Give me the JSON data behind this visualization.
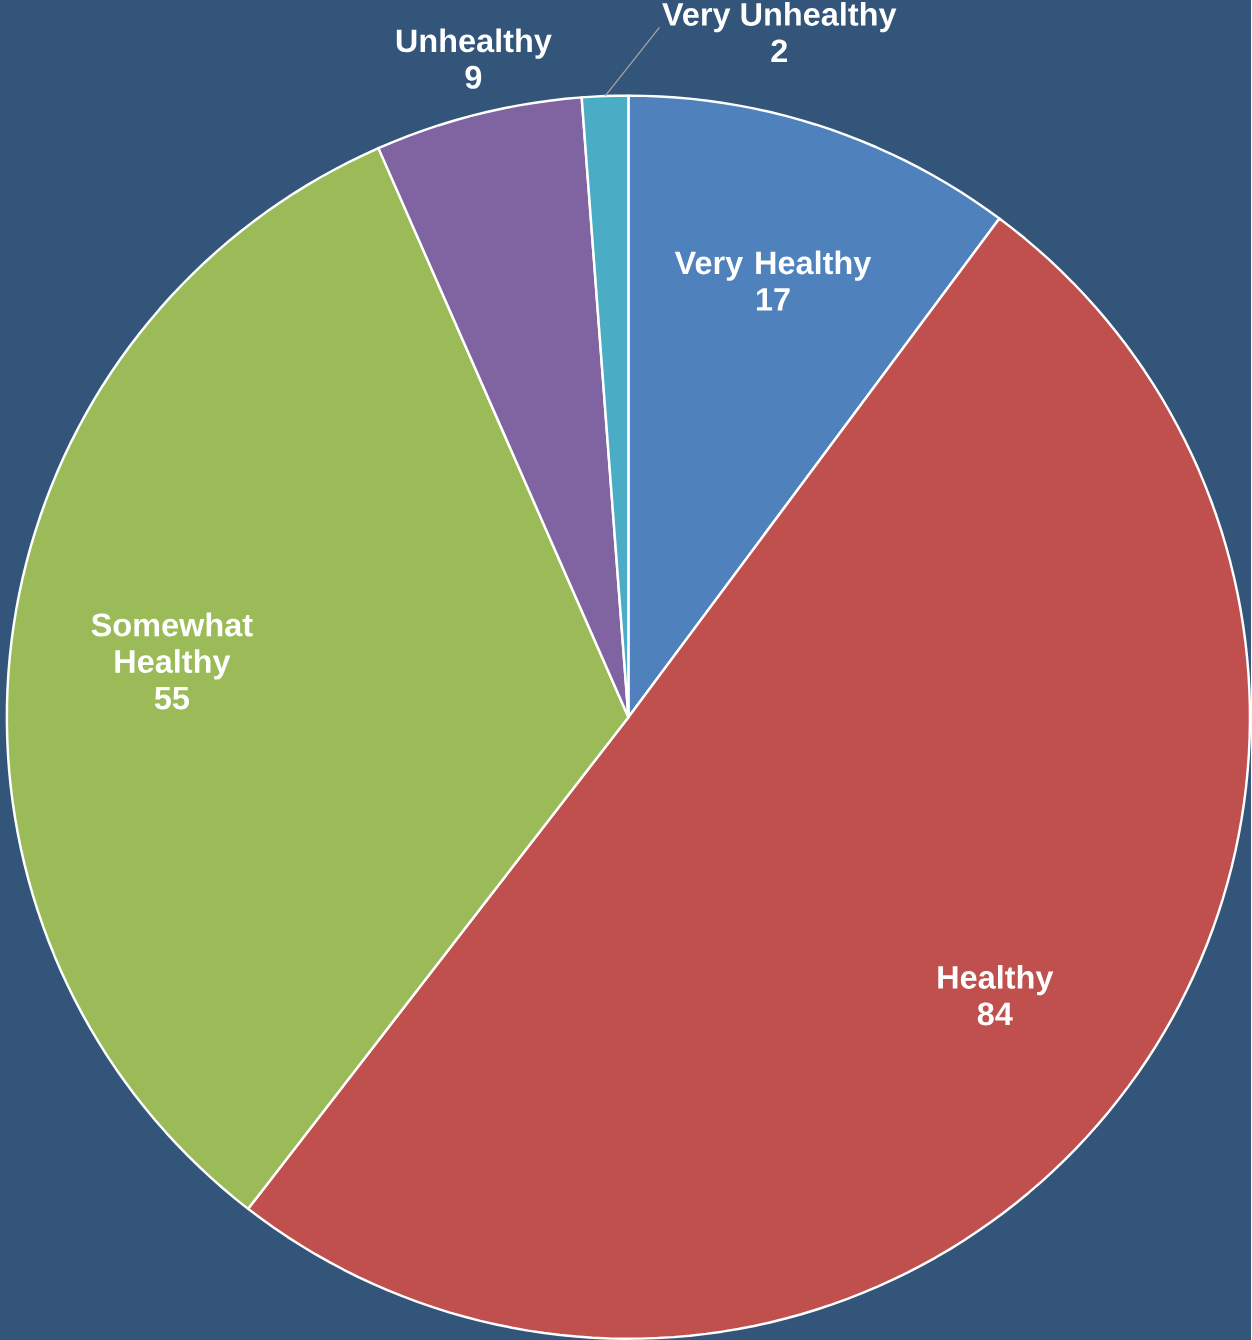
{
  "chart_data": {
    "type": "pie",
    "categories": [
      "Very Healthy",
      "Healthy",
      "Somewhat Healthy",
      "Unhealthy",
      "Very Unhealthy"
    ],
    "values": [
      17,
      84,
      55,
      9,
      2
    ],
    "colors": [
      "#4f81bd",
      "#c0504d",
      "#9bbb59",
      "#8064a2",
      "#4bacc6"
    ],
    "data_labels": true
  }
}
